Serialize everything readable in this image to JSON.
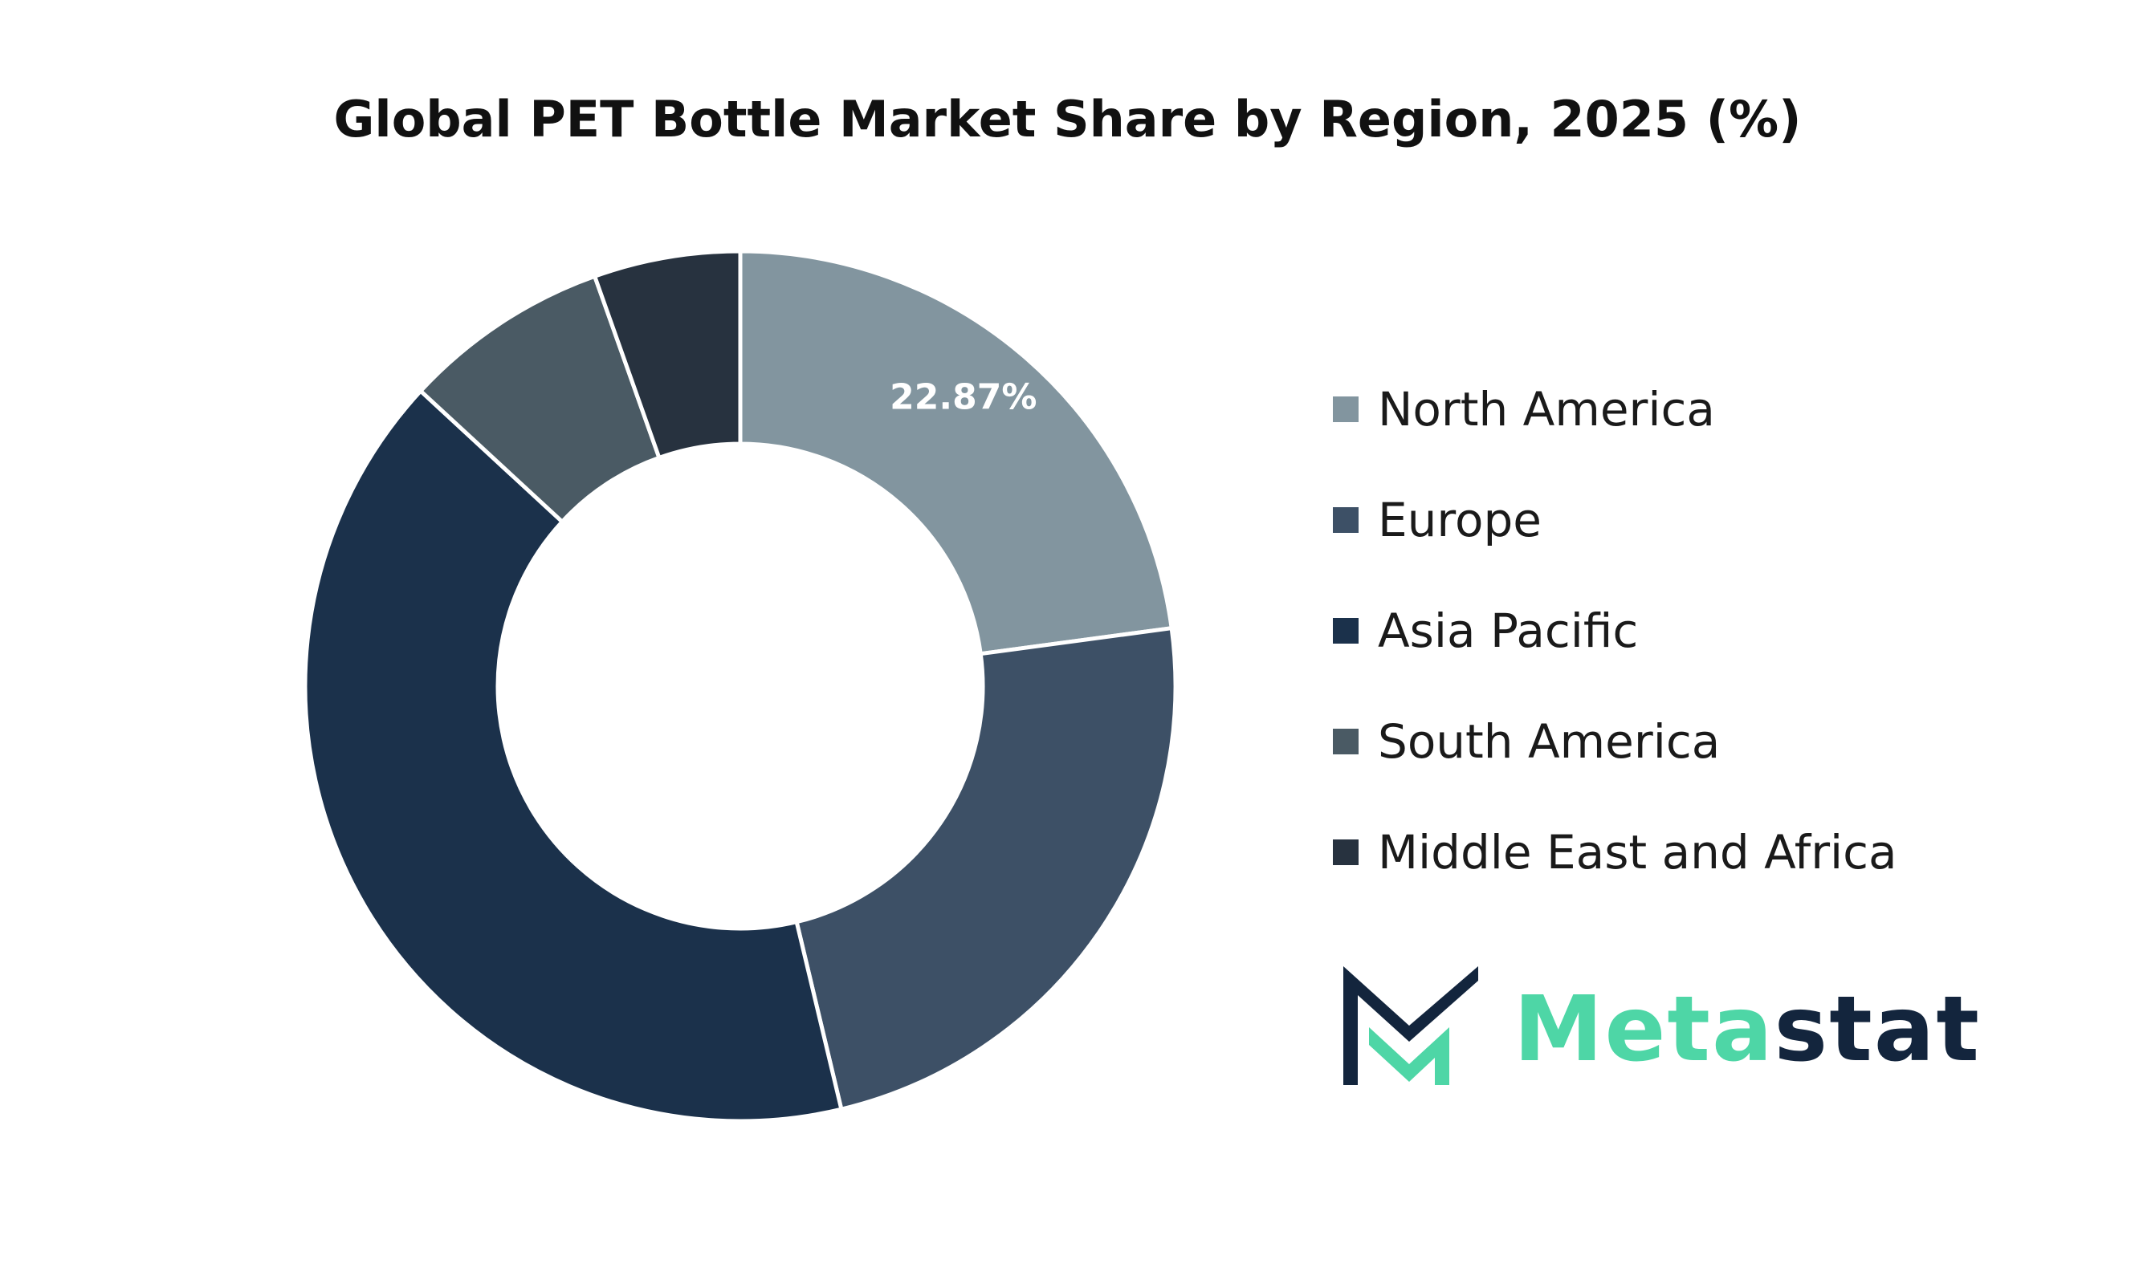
{
  "title": "Global PET Bottle Market Share by Region, 2025 (%)",
  "chart_data": {
    "type": "pie",
    "variant": "donut",
    "title": "Global PET Bottle Market Share by Region, 2025 (%)",
    "categories": [
      "North America",
      "Europe",
      "Asia Pacific",
      "South America",
      "Middle East and Africa"
    ],
    "values": [
      22.87,
      23.4,
      40.6,
      7.7,
      5.43
    ],
    "colors": [
      "#82959f",
      "#3d5066",
      "#1b314b",
      "#4a5a64",
      "#27323f"
    ],
    "data_labels": [
      "22.87%",
      "",
      "",
      "",
      ""
    ],
    "legend_position": "right"
  },
  "legend": [
    {
      "label": "North America",
      "color": "#82959f"
    },
    {
      "label": "Europe",
      "color": "#3d5066"
    },
    {
      "label": "Asia Pacific",
      "color": "#1b314b"
    },
    {
      "label": "South America",
      "color": "#4a5a64"
    },
    {
      "label": "Middle East and Africa",
      "color": "#27323f"
    }
  ],
  "logo": {
    "text_part1": "Meta",
    "text_part2": "stat",
    "icon": "metastat-m-logo-icon",
    "colors": {
      "accent": "#4ed6a6",
      "dark": "#13253d"
    }
  }
}
